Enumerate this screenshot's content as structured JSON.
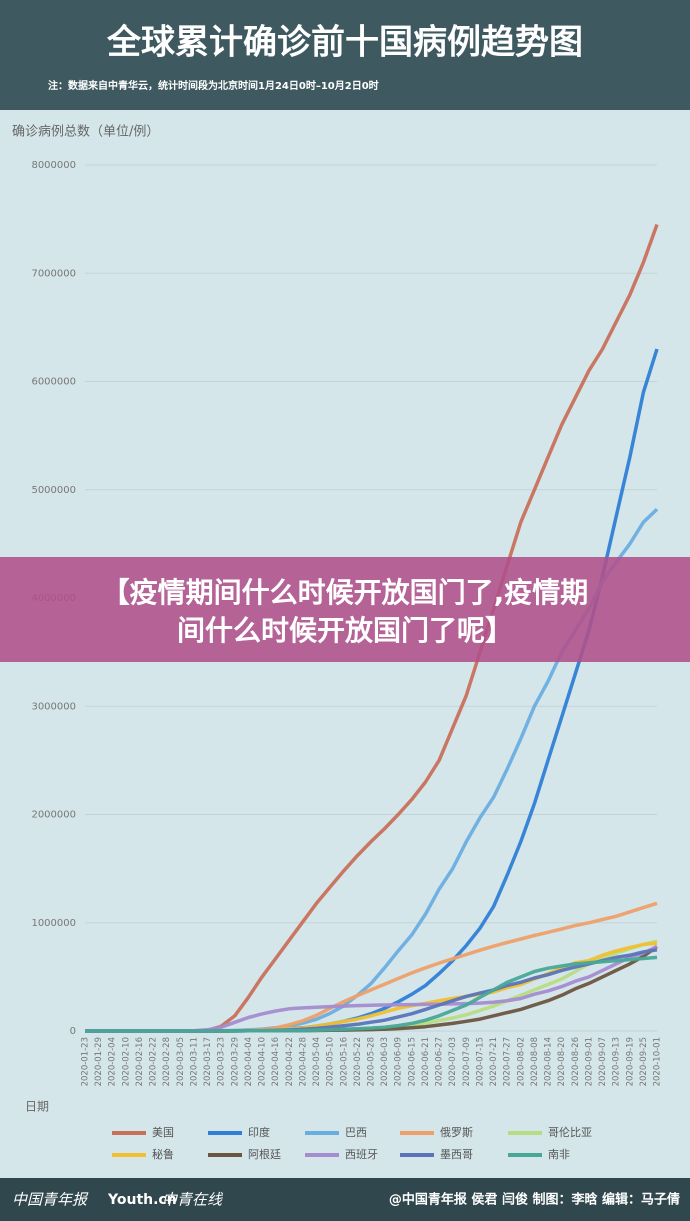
{
  "chart_data": {
    "type": "line",
    "title": "全球累计确诊前十国病例趋势图",
    "subtitle": "注：数据来自中青华云，统计时间段为北京时间1月24日0时–10月2日0时",
    "y_label": "确诊病例总数（单位/例）",
    "x_label": "日期",
    "categories": [
      "2020-01-23",
      "2020-01-29",
      "2020-02-04",
      "2020-02-10",
      "2020-02-16",
      "2020-02-22",
      "2020-02-28",
      "2020-03-05",
      "2020-03-11",
      "2020-03-17",
      "2020-03-23",
      "2020-03-29",
      "2020-04-04",
      "2020-04-10",
      "2020-04-16",
      "2020-04-22",
      "2020-04-28",
      "2020-05-04",
      "2020-05-10",
      "2020-05-16",
      "2020-05-22",
      "2020-05-28",
      "2020-06-03",
      "2020-06-09",
      "2020-06-15",
      "2020-06-21",
      "2020-06-27",
      "2020-07-03",
      "2020-07-09",
      "2020-07-15",
      "2020-07-21",
      "2020-07-27",
      "2020-08-02",
      "2020-08-08",
      "2020-08-14",
      "2020-08-20",
      "2020-08-26",
      "2020-09-01",
      "2020-09-07",
      "2020-09-13",
      "2020-09-19",
      "2020-09-25",
      "2020-10-01"
    ],
    "ylim": [
      0,
      8000000
    ],
    "yticks": [
      0,
      1000000,
      2000000,
      3000000,
      4000000,
      5000000,
      6000000,
      7000000,
      8000000
    ],
    "series": [
      {
        "name": "美国",
        "color": "#c8705c",
        "values": [
          1,
          5,
          12,
          15,
          15,
          15,
          60,
          230,
          1300,
          6400,
          43000,
          140000,
          311000,
          500000,
          670000,
          840000,
          1010000,
          1180000,
          1330000,
          1480000,
          1620000,
          1750000,
          1870000,
          2000000,
          2140000,
          2300000,
          2500000,
          2800000,
          3100000,
          3500000,
          3900000,
          4300000,
          4700000,
          5000000,
          5300000,
          5600000,
          5850000,
          6100000,
          6300000,
          6550000,
          6800000,
          7100000,
          7450000
        ]
      },
      {
        "name": "印度",
        "color": "#2f7fd6",
        "values": [
          0,
          0,
          3,
          3,
          3,
          3,
          3,
          30,
          60,
          140,
          400,
          1000,
          3000,
          7500,
          12000,
          20000,
          30000,
          45000,
          65000,
          90000,
          120000,
          160000,
          210000,
          270000,
          340000,
          420000,
          530000,
          650000,
          790000,
          950000,
          1150000,
          1440000,
          1750000,
          2100000,
          2500000,
          2900000,
          3300000,
          3700000,
          4200000,
          4750000,
          5300000,
          5900000,
          6300000
        ]
      },
      {
        "name": "巴西",
        "color": "#6aaee0",
        "values": [
          0,
          0,
          0,
          0,
          0,
          0,
          1,
          2,
          50,
          300,
          1900,
          4200,
          10000,
          18000,
          30000,
          45000,
          73000,
          108000,
          163000,
          233000,
          330000,
          438000,
          584000,
          740000,
          890000,
          1080000,
          1310000,
          1500000,
          1750000,
          1970000,
          2160000,
          2420000,
          2700000,
          3000000,
          3230000,
          3500000,
          3700000,
          3900000,
          4150000,
          4330000,
          4500000,
          4700000,
          4820000
        ]
      },
      {
        "name": "俄罗斯",
        "color": "#eea06a",
        "values": [
          0,
          0,
          0,
          0,
          2,
          2,
          3,
          4,
          20,
          110,
          500,
          1500,
          4700,
          12000,
          28000,
          58000,
          94000,
          145000,
          210000,
          272000,
          327000,
          380000,
          432000,
          485000,
          537000,
          584000,
          627000,
          667000,
          707000,
          746000,
          783000,
          818000,
          850000,
          882000,
          912000,
          942000,
          975000,
          1000000,
          1030000,
          1060000,
          1100000,
          1140000,
          1180000
        ]
      },
      {
        "name": "哥伦比亚",
        "color": "#b8dc82",
        "values": [
          0,
          0,
          0,
          0,
          0,
          0,
          0,
          0,
          0,
          50,
          230,
          700,
          1400,
          2500,
          3400,
          4300,
          6000,
          8000,
          11000,
          14000,
          19000,
          25000,
          31000,
          40000,
          55000,
          73000,
          97000,
          120000,
          150000,
          190000,
          230000,
          280000,
          330000,
          380000,
          430000,
          480000,
          550000,
          620000,
          670000,
          720000,
          760000,
          800000,
          830000
        ]
      },
      {
        "name": "秘鲁",
        "color": "#f0c030",
        "values": [
          0,
          0,
          0,
          0,
          0,
          0,
          0,
          0,
          0,
          120,
          400,
          900,
          1600,
          5000,
          11000,
          19000,
          28000,
          45000,
          65000,
          88000,
          110000,
          140000,
          175000,
          210000,
          235000,
          255000,
          280000,
          300000,
          320000,
          340000,
          360000,
          400000,
          430000,
          480000,
          530000,
          580000,
          630000,
          650000,
          700000,
          740000,
          770000,
          800000,
          810000
        ]
      },
      {
        "name": "阿根廷",
        "color": "#6b5540",
        "values": [
          0,
          0,
          0,
          0,
          0,
          0,
          0,
          0,
          0,
          60,
          270,
          800,
          1500,
          2000,
          2700,
          3300,
          4100,
          5000,
          6300,
          8000,
          10000,
          13000,
          17000,
          22000,
          30000,
          40000,
          55000,
          70000,
          90000,
          110000,
          140000,
          170000,
          200000,
          240000,
          280000,
          330000,
          390000,
          440000,
          500000,
          560000,
          620000,
          690000,
          780000
        ]
      },
      {
        "name": "西班牙",
        "color": "#a58ccf",
        "values": [
          0,
          0,
          0,
          0,
          0,
          0,
          0,
          0,
          2000,
          11000,
          35000,
          80000,
          125000,
          158000,
          185000,
          205000,
          213000,
          220000,
          225000,
          230000,
          235000,
          238000,
          240000,
          242000,
          244000,
          246000,
          248000,
          250000,
          253000,
          258000,
          265000,
          280000,
          300000,
          340000,
          370000,
          410000,
          460000,
          500000,
          560000,
          620000,
          680000,
          720000,
          780000
        ]
      },
      {
        "name": "墨西哥",
        "color": "#5a74b8",
        "values": [
          0,
          0,
          0,
          0,
          0,
          0,
          0,
          0,
          10,
          90,
          370,
          1000,
          2000,
          3500,
          6300,
          10000,
          16000,
          24000,
          36000,
          49000,
          62000,
          81000,
          100000,
          130000,
          160000,
          200000,
          240000,
          280000,
          320000,
          350000,
          380000,
          420000,
          450000,
          490000,
          520000,
          560000,
          590000,
          620000,
          650000,
          680000,
          700000,
          730000,
          750000
        ]
      },
      {
        "name": "南非",
        "color": "#48a898",
        "values": [
          0,
          0,
          0,
          0,
          0,
          0,
          0,
          0,
          0,
          60,
          400,
          1200,
          1600,
          2000,
          2600,
          3500,
          5000,
          7000,
          11000,
          16000,
          20000,
          27000,
          35000,
          50000,
          70000,
          100000,
          140000,
          190000,
          240000,
          310000,
          380000,
          450000,
          500000,
          550000,
          580000,
          600000,
          620000,
          630000,
          640000,
          650000,
          660000,
          670000,
          680000
        ]
      }
    ]
  },
  "banner": {
    "text_line1": "【疫情期间什么时候开放国门了,疫情期",
    "text_line2": "间什么时候开放国门了呢】"
  },
  "footer": {
    "logo1": "中国青年报",
    "logo2": "Youth.cn",
    "logo3": "中青在线",
    "credits": "@中国青年报  侯君  闫俊  制图：李晗  编辑：马子倩"
  }
}
